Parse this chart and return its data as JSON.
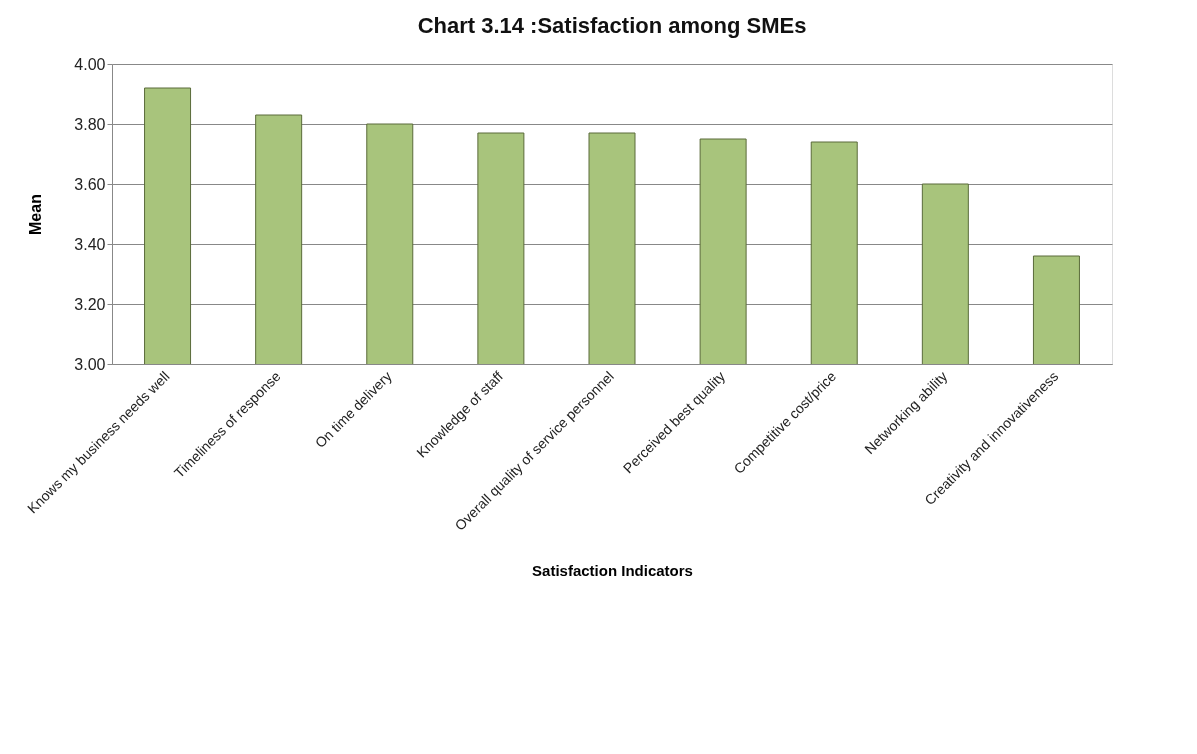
{
  "chart_data": {
    "type": "bar",
    "title": "Chart 3.14 :Satisfaction among SMEs",
    "xlabel": "Satisfaction Indicators",
    "ylabel": "Mean",
    "categories": [
      "Knows my business needs well",
      "Timeliness of response",
      "On time delivery",
      "Knowledge of staff",
      "Overall quality of service personnel",
      "Perceived best quality",
      "Competitive cost/price",
      "Networking ability",
      "Creativity and innovativeness"
    ],
    "values": [
      3.92,
      3.83,
      3.8,
      3.77,
      3.77,
      3.75,
      3.74,
      3.6,
      3.36
    ],
    "color": "#a8c47c",
    "ylim": [
      3.0,
      4.0
    ],
    "yticks": [
      {
        "value": 3.0,
        "label": "3.00"
      },
      {
        "value": 3.2,
        "label": "3.20"
      },
      {
        "value": 3.4,
        "label": "3.40"
      },
      {
        "value": 3.6,
        "label": "3.60"
      },
      {
        "value": 3.8,
        "label": "3.80"
      },
      {
        "value": 4.0,
        "label": "4.00"
      }
    ],
    "grid": "y"
  }
}
